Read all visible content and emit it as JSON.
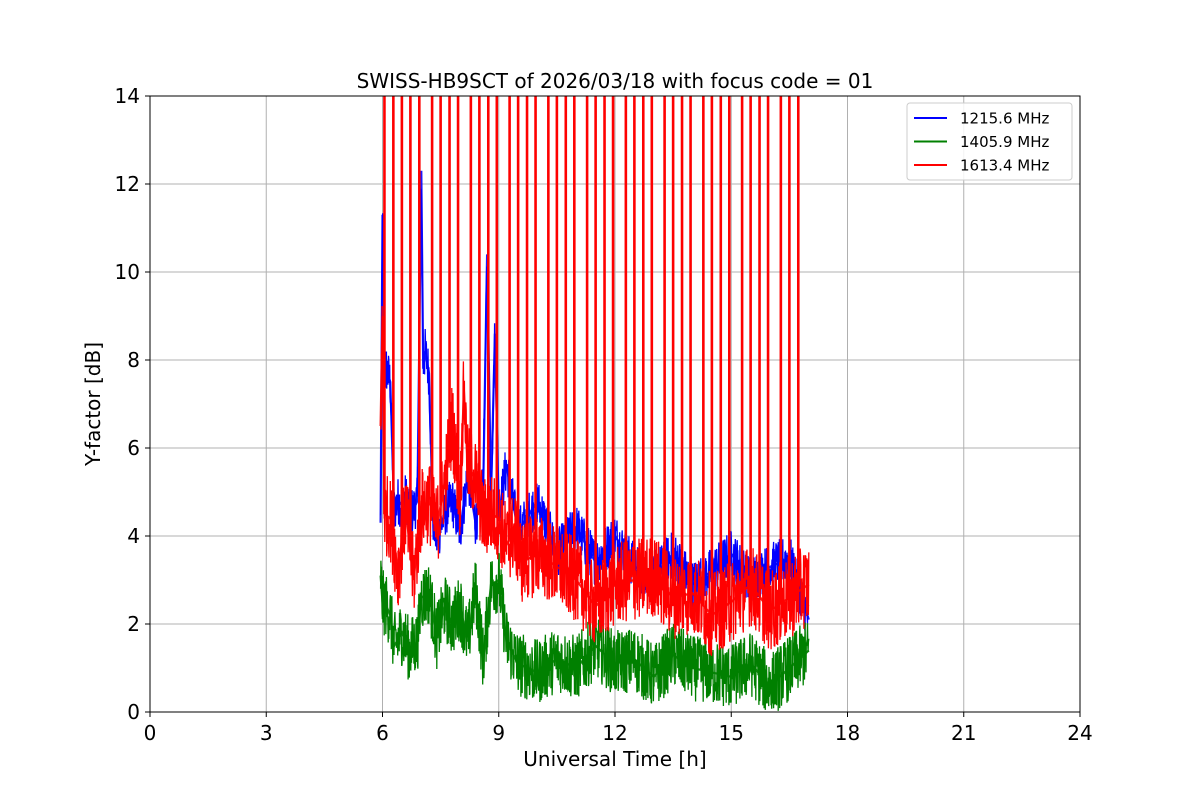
{
  "chart_data": {
    "type": "line",
    "title": "SWISS-HB9SCT of 2026/03/18 with focus code = 01",
    "xlabel": "Universal Time [h]",
    "ylabel": "Y-factor [dB]",
    "xlim": [
      0,
      24
    ],
    "ylim": [
      0,
      14
    ],
    "xticks": [
      0,
      3,
      6,
      9,
      12,
      15,
      18,
      21,
      24
    ],
    "yticks": [
      0,
      2,
      4,
      6,
      8,
      10,
      12,
      14
    ],
    "grid": true,
    "legend_position": "top-right",
    "series": [
      {
        "name": "1215.6 MHz",
        "color": "#0000ff",
        "x": [
          5.95,
          6.0,
          6.05,
          6.1,
          6.2,
          6.3,
          6.4,
          6.5,
          6.6,
          6.7,
          6.8,
          6.9,
          7.0,
          7.05,
          7.1,
          7.2,
          7.3,
          7.4,
          7.5,
          7.6,
          7.8,
          8.0,
          8.2,
          8.4,
          8.6,
          8.7,
          8.8,
          8.9,
          9.0,
          9.2,
          9.5,
          10.0,
          10.5,
          11.0,
          11.5,
          12.0,
          12.5,
          13.0,
          13.5,
          14.0,
          14.5,
          15.0,
          15.5,
          16.0,
          16.5,
          17.0
        ],
        "y": [
          4.3,
          11.3,
          7.6,
          7.8,
          7.5,
          4.6,
          4.8,
          4.7,
          4.9,
          4.5,
          4.6,
          4.8,
          12.3,
          7.8,
          8.2,
          7.7,
          4.4,
          3.9,
          4.2,
          4.5,
          4.8,
          4.1,
          5.4,
          4.3,
          5.2,
          10.4,
          4.9,
          8.6,
          4.5,
          5.6,
          4.1,
          4.8,
          3.6,
          4.2,
          3.4,
          4.0,
          3.3,
          3.1,
          3.6,
          2.9,
          3.2,
          3.6,
          3.0,
          3.3,
          3.5,
          2.1
        ]
      },
      {
        "name": "1405.9 MHz",
        "color": "#008000",
        "x": [
          5.95,
          6.0,
          6.1,
          6.2,
          6.3,
          6.5,
          6.7,
          6.9,
          7.0,
          7.2,
          7.4,
          7.6,
          7.8,
          8.0,
          8.2,
          8.4,
          8.6,
          8.8,
          9.0,
          9.2,
          9.5,
          10.0,
          10.5,
          11.0,
          11.5,
          12.0,
          12.5,
          13.0,
          13.5,
          14.0,
          14.5,
          15.0,
          15.5,
          16.0,
          16.5,
          17.0
        ],
        "y": [
          3.1,
          2.5,
          2.4,
          2.2,
          1.5,
          1.8,
          1.4,
          1.6,
          2.6,
          2.7,
          1.7,
          2.4,
          2.0,
          2.4,
          1.6,
          2.8,
          1.2,
          2.9,
          3.0,
          1.6,
          1.1,
          0.9,
          1.2,
          1.0,
          1.5,
          1.1,
          1.2,
          0.8,
          1.3,
          1.0,
          0.9,
          0.8,
          1.1,
          0.6,
          1.0,
          1.4
        ]
      },
      {
        "name": "1613.4 MHz",
        "color": "#ff0000",
        "x": [
          5.95,
          6.0,
          6.05,
          6.2,
          6.4,
          6.6,
          6.8,
          7.0,
          7.2,
          7.4,
          7.6,
          7.8,
          8.0,
          8.1,
          8.2,
          8.4,
          8.6,
          8.8,
          9.0,
          9.2,
          9.4,
          9.6,
          10.0,
          10.5,
          11.0,
          11.5,
          12.0,
          12.5,
          13.0,
          13.5,
          14.0,
          14.5,
          15.0,
          15.5,
          16.0,
          16.5,
          17.0
        ],
        "y": [
          6.5,
          9.0,
          4.5,
          4.4,
          3.2,
          4.6,
          3.0,
          4.6,
          4.8,
          4.2,
          5.2,
          6.6,
          4.8,
          7.3,
          5.6,
          5.3,
          4.4,
          4.5,
          4.4,
          3.8,
          4.1,
          3.4,
          3.6,
          3.3,
          3.0,
          2.4,
          2.9,
          3.0,
          3.1,
          2.6,
          2.7,
          2.2,
          2.5,
          2.9,
          2.3,
          2.6,
          2.9
        ]
      }
    ],
    "spikes_1613": [
      6.05,
      6.28,
      6.5,
      6.72,
      6.95,
      7.28,
      7.5,
      7.73,
      7.95,
      8.28,
      8.5,
      8.73,
      8.95,
      9.28,
      9.5,
      9.73,
      9.95,
      10.28,
      10.5,
      10.73,
      10.95,
      11.28,
      11.5,
      11.73,
      11.95,
      12.28,
      12.5,
      12.73,
      12.95,
      13.28,
      13.5,
      13.73,
      13.95,
      14.28,
      14.5,
      14.73,
      14.95,
      15.28,
      15.5,
      15.73,
      15.95,
      16.28,
      16.5,
      16.73
    ]
  }
}
